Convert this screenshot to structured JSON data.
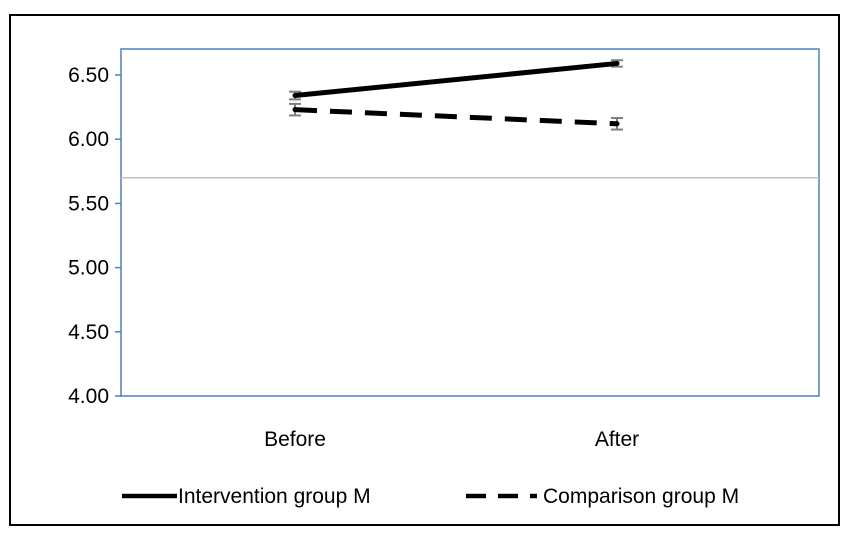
{
  "chart_data": {
    "type": "line",
    "title": "",
    "xlabel": "",
    "ylabel": "",
    "categories": [
      "Before",
      "After"
    ],
    "ylim": [
      4.0,
      6.5
    ],
    "yticks": [
      "4.00",
      "4.50",
      "5.00",
      "5.50",
      "6.00",
      "6.50"
    ],
    "reference_line": 5.7,
    "series": [
      {
        "name": "Intervention group M",
        "values": [
          6.34,
          6.59
        ],
        "error": [
          0.03,
          0.025
        ],
        "line_style": "solid",
        "color": "#000000"
      },
      {
        "name": "Comparison group M",
        "values": [
          6.23,
          6.12
        ],
        "error": [
          0.045,
          0.045
        ],
        "line_style": "dashed",
        "color": "#000000"
      }
    ],
    "legend_position": "bottom",
    "colors": {
      "plot_border": "#4f81bd",
      "reference_line": "#bfbfbf",
      "error_bar": "#7f7f7f",
      "outer_border": "#000000"
    }
  }
}
